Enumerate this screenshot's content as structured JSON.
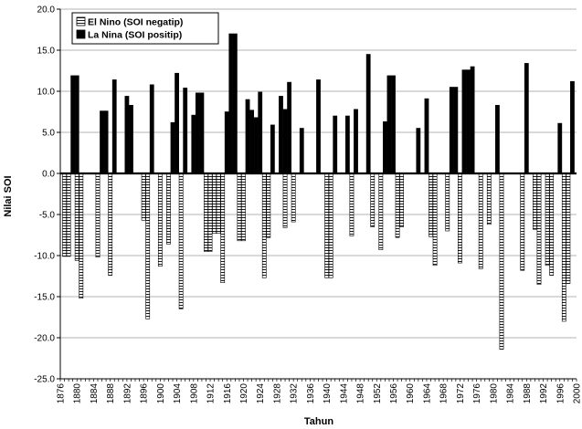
{
  "chart_data": {
    "type": "bar",
    "xlabel": "Tahun",
    "ylabel": "Nilai SOI",
    "ylim": [
      -25,
      20
    ],
    "xlim": [
      1876,
      2000
    ],
    "y_ticks": [
      "20.0",
      "15.0",
      "10.0",
      "5.0",
      "0.0",
      "-5.0",
      "-10.0",
      "-15.0",
      "-20.0",
      "-25.0"
    ],
    "x_ticks": [
      "1876",
      "1880",
      "1884",
      "1888",
      "1892",
      "1896",
      "1900",
      "1904",
      "1908",
      "1912",
      "1916",
      "1920",
      "1924",
      "1928",
      "1932",
      "1936",
      "1940",
      "1944",
      "1948",
      "1952",
      "1956",
      "1960",
      "1964",
      "1968",
      "1972",
      "1976",
      "1980",
      "1984",
      "1988",
      "1992",
      "1996",
      "2000"
    ],
    "grid": "horizontal",
    "legend_position": "top-left",
    "colors": {
      "el_nino_fill": "#ffffff",
      "el_nino_stroke": "#000000",
      "la_nina_fill": "#000000"
    },
    "series": [
      {
        "name": "El Nino (SOI negatip)",
        "pattern": "horizontal-stripes",
        "points": [
          {
            "x": 1877,
            "y": -10.1
          },
          {
            "x": 1878,
            "y": -10.1
          },
          {
            "x": 1880,
            "y": -10.6
          },
          {
            "x": 1881,
            "y": -15.2
          },
          {
            "x": 1885,
            "y": -10.2
          },
          {
            "x": 1888,
            "y": -12.4
          },
          {
            "x": 1896,
            "y": -5.7
          },
          {
            "x": 1897,
            "y": -17.7
          },
          {
            "x": 1900,
            "y": -11.3
          },
          {
            "x": 1902,
            "y": -8.6
          },
          {
            "x": 1905,
            "y": -16.5
          },
          {
            "x": 1911,
            "y": -9.5
          },
          {
            "x": 1912,
            "y": -9.5
          },
          {
            "x": 1913,
            "y": -7.3
          },
          {
            "x": 1914,
            "y": -7.3
          },
          {
            "x": 1915,
            "y": -13.3
          },
          {
            "x": 1919,
            "y": -8.2
          },
          {
            "x": 1920,
            "y": -8.2
          },
          {
            "x": 1925,
            "y": -12.7
          },
          {
            "x": 1926,
            "y": -7.8
          },
          {
            "x": 1930,
            "y": -6.6
          },
          {
            "x": 1932,
            "y": -5.9
          },
          {
            "x": 1940,
            "y": -12.7
          },
          {
            "x": 1941,
            "y": -12.7
          },
          {
            "x": 1946,
            "y": -7.6
          },
          {
            "x": 1951,
            "y": -6.5
          },
          {
            "x": 1953,
            "y": -9.3
          },
          {
            "x": 1957,
            "y": -7.8
          },
          {
            "x": 1958,
            "y": -6.5
          },
          {
            "x": 1965,
            "y": -7.7
          },
          {
            "x": 1966,
            "y": -11.2
          },
          {
            "x": 1969,
            "y": -7.0
          },
          {
            "x": 1972,
            "y": -10.9
          },
          {
            "x": 1977,
            "y": -11.6
          },
          {
            "x": 1979,
            "y": -6.2
          },
          {
            "x": 1982,
            "y": -21.4
          },
          {
            "x": 1987,
            "y": -11.8
          },
          {
            "x": 1990,
            "y": -6.8
          },
          {
            "x": 1991,
            "y": -13.5
          },
          {
            "x": 1993,
            "y": -11.2
          },
          {
            "x": 1994,
            "y": -12.4
          },
          {
            "x": 1997,
            "y": -18.0
          },
          {
            "x": 1998,
            "y": -13.4
          }
        ]
      },
      {
        "name": "La Nina (SOI positip)",
        "pattern": "solid",
        "points": [
          {
            "x": 1879,
            "y": 11.9
          },
          {
            "x": 1880,
            "y": 11.9
          },
          {
            "x": 1886,
            "y": 7.6
          },
          {
            "x": 1887,
            "y": 7.6
          },
          {
            "x": 1889,
            "y": 11.4
          },
          {
            "x": 1892,
            "y": 9.4
          },
          {
            "x": 1893,
            "y": 8.3
          },
          {
            "x": 1898,
            "y": 10.8
          },
          {
            "x": 1903,
            "y": 6.2
          },
          {
            "x": 1904,
            "y": 12.2
          },
          {
            "x": 1906,
            "y": 10.4
          },
          {
            "x": 1908,
            "y": 7.1
          },
          {
            "x": 1909,
            "y": 9.8
          },
          {
            "x": 1910,
            "y": 9.8
          },
          {
            "x": 1916,
            "y": 7.5
          },
          {
            "x": 1917,
            "y": 17.0
          },
          {
            "x": 1918,
            "y": 17.0
          },
          {
            "x": 1921,
            "y": 9.0
          },
          {
            "x": 1922,
            "y": 7.7
          },
          {
            "x": 1923,
            "y": 6.8
          },
          {
            "x": 1924,
            "y": 9.9
          },
          {
            "x": 1927,
            "y": 5.9
          },
          {
            "x": 1929,
            "y": 9.4
          },
          {
            "x": 1930,
            "y": 7.8
          },
          {
            "x": 1931,
            "y": 11.1
          },
          {
            "x": 1934,
            "y": 5.5
          },
          {
            "x": 1938,
            "y": 11.4
          },
          {
            "x": 1942,
            "y": 7.0
          },
          {
            "x": 1945,
            "y": 7.0
          },
          {
            "x": 1947,
            "y": 7.8
          },
          {
            "x": 1950,
            "y": 14.5
          },
          {
            "x": 1954,
            "y": 6.3
          },
          {
            "x": 1955,
            "y": 11.9
          },
          {
            "x": 1956,
            "y": 11.9
          },
          {
            "x": 1962,
            "y": 5.5
          },
          {
            "x": 1964,
            "y": 9.1
          },
          {
            "x": 1970,
            "y": 10.5
          },
          {
            "x": 1971,
            "y": 10.5
          },
          {
            "x": 1973,
            "y": 12.6
          },
          {
            "x": 1974,
            "y": 12.6
          },
          {
            "x": 1975,
            "y": 13.0
          },
          {
            "x": 1981,
            "y": 8.3
          },
          {
            "x": 1988,
            "y": 13.4
          },
          {
            "x": 1996,
            "y": 6.1
          },
          {
            "x": 1999,
            "y": 11.2
          }
        ]
      }
    ]
  }
}
